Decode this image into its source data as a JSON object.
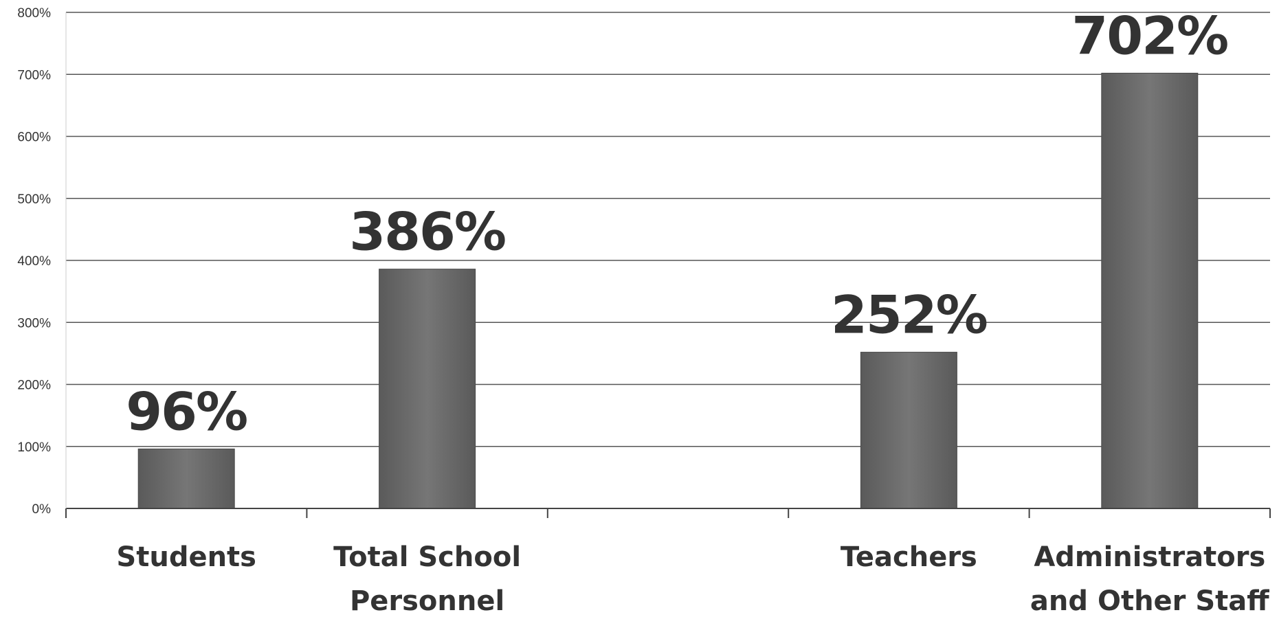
{
  "chart_data": {
    "type": "bar",
    "categories": [
      [
        "Students"
      ],
      [
        "Total School",
        "Personnel"
      ],
      [
        ""
      ],
      [
        "Teachers"
      ],
      [
        "Administrators",
        "and Other Staff"
      ]
    ],
    "values": [
      96,
      386,
      null,
      252,
      702
    ],
    "data_labels": [
      "96%",
      "386%",
      "",
      "252%",
      "702%"
    ],
    "yticks": [
      "0%",
      "100%",
      "200%",
      "300%",
      "400%",
      "500%",
      "600%",
      "700%",
      "800%"
    ],
    "ylim": [
      0,
      800
    ],
    "grid": true,
    "legend": "none",
    "colors": {
      "bar": "#6b6b6b",
      "bar_edge": "#4a4a4a",
      "grid": "#555555",
      "text": "#333333"
    }
  }
}
